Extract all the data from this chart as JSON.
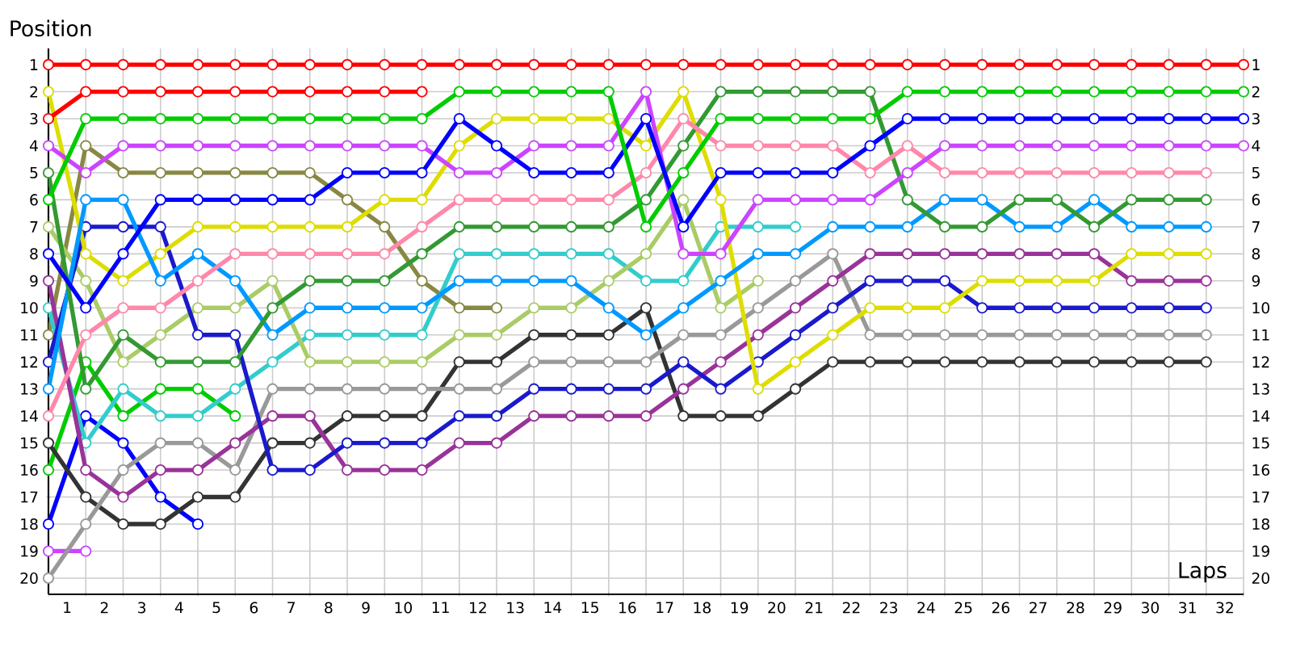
{
  "chart_data": {
    "type": "line",
    "xlabel": "Laps",
    "ylabel": "Position",
    "marker": "circle",
    "grid": true,
    "x": [
      0.5,
      1.5,
      2.5,
      3.5,
      4.5,
      5.5,
      6.5,
      7.5,
      8.5,
      9.5,
      10.5,
      11.5,
      12.5,
      13.5,
      14.5,
      15.5,
      16.5,
      17.5,
      18.5,
      19.5,
      20.5,
      21.5,
      22.5,
      23.5,
      24.5,
      25.5,
      26.5,
      27.5,
      28.5,
      29.5,
      30.5,
      31.5,
      32.5
    ],
    "xlim": [
      0.5,
      32.5
    ],
    "xticks": [
      {
        "value": 0.5,
        "label": null
      },
      {
        "value": 1.5,
        "label": null
      },
      {
        "value": 2.5,
        "label": null
      },
      {
        "value": 3.5,
        "label": null
      },
      {
        "value": 4.5,
        "label": null
      },
      {
        "value": 5.5,
        "label": null
      },
      {
        "value": 6.5,
        "label": null
      },
      {
        "value": 7.5,
        "label": null
      },
      {
        "value": 8.5,
        "label": null
      },
      {
        "value": 9.5,
        "label": null
      },
      {
        "value": 10.5,
        "label": null
      },
      {
        "value": 11.5,
        "label": null
      },
      {
        "value": 12.5,
        "label": null
      },
      {
        "value": 13.5,
        "label": null
      },
      {
        "value": 14.5,
        "label": null
      },
      {
        "value": 15.5,
        "label": null
      },
      {
        "value": 16.5,
        "label": null
      },
      {
        "value": 17.5,
        "label": null
      },
      {
        "value": 18.5,
        "label": null
      },
      {
        "value": 19.5,
        "label": null
      },
      {
        "value": 20.5,
        "label": null
      },
      {
        "value": 21.5,
        "label": null
      },
      {
        "value": 22.5,
        "label": null
      },
      {
        "value": 23.5,
        "label": null
      },
      {
        "value": 24.5,
        "label": null
      },
      {
        "value": 25.5,
        "label": null
      },
      {
        "value": 26.5,
        "label": null
      },
      {
        "value": 27.5,
        "label": null
      },
      {
        "value": 28.5,
        "label": null
      },
      {
        "value": 29.5,
        "label": null
      },
      {
        "value": 30.5,
        "label": null
      },
      {
        "value": 31.5,
        "label": null
      },
      {
        "value": 32.5,
        "label": null
      },
      1,
      2,
      3,
      4,
      5,
      6,
      7,
      8,
      9,
      10,
      11,
      12,
      13,
      14,
      15,
      16,
      17,
      18,
      19,
      20,
      21,
      22,
      23,
      24,
      25,
      26,
      27,
      28,
      29,
      30,
      31,
      32
    ],
    "ylim": [
      20.6,
      0.4
    ],
    "yticks": [
      1,
      2,
      3,
      4,
      5,
      6,
      7,
      8,
      9,
      10,
      11,
      12,
      13,
      14,
      15,
      16,
      17,
      18,
      19,
      20
    ],
    "y2lim": [
      20.6,
      0.4
    ],
    "y2ticks": [
      1,
      2,
      3,
      4,
      5,
      6,
      7,
      8,
      9,
      10,
      11,
      12,
      13,
      14,
      15,
      16,
      17,
      18,
      19,
      20
    ],
    "series": [
      {
        "color": "#cc44ff",
        "values": [
          19,
          19,
          null,
          null,
          null,
          null,
          null,
          null,
          null,
          null,
          null,
          null,
          null,
          null,
          null,
          null,
          null,
          null,
          null,
          null,
          null,
          null,
          null,
          null,
          null,
          null,
          null,
          null,
          null,
          null,
          null,
          null,
          null
        ]
      },
      {
        "color": "#00cc00",
        "values": [
          16,
          12,
          14,
          13,
          13,
          14,
          null,
          null,
          null,
          null,
          null,
          null,
          null,
          null,
          null,
          null,
          null,
          null,
          null,
          null,
          null,
          null,
          null,
          null,
          null,
          null,
          null,
          null,
          null,
          null,
          null,
          null,
          null
        ]
      },
      {
        "color": "#0000ff",
        "values": [
          18,
          14,
          15,
          17,
          18,
          null,
          null,
          null,
          null,
          null,
          null,
          null,
          null,
          null,
          null,
          null,
          null,
          null,
          null,
          null,
          null,
          null,
          null,
          null,
          null,
          null,
          null,
          null,
          null,
          null,
          null,
          null,
          null
        ]
      },
      {
        "color": "#888844",
        "values": [
          11,
          4,
          5,
          5,
          5,
          5,
          5,
          5,
          6,
          7,
          9,
          10,
          10,
          null,
          null,
          null,
          null,
          null,
          null,
          null,
          null,
          null,
          null,
          null,
          null,
          null,
          null,
          null,
          null,
          null,
          null,
          null,
          null
        ]
      },
      {
        "color": "#33cccc",
        "values": [
          10,
          15,
          13,
          14,
          14,
          13,
          12,
          11,
          11,
          11,
          11,
          8,
          8,
          8,
          8,
          8,
          9,
          9,
          7,
          7,
          7,
          null,
          null,
          null,
          null,
          null,
          null,
          null,
          null,
          null,
          null,
          null,
          null
        ]
      },
      {
        "color": "#aacc66",
        "values": [
          7,
          9,
          12,
          11,
          10,
          10,
          9,
          12,
          12,
          12,
          12,
          11,
          11,
          10,
          10,
          9,
          8,
          6,
          10,
          9,
          null,
          null,
          null,
          null,
          null,
          null,
          null,
          null,
          null,
          null,
          null,
          null,
          null
        ]
      },
      {
        "color": "#333333",
        "values": [
          15,
          17,
          18,
          18,
          17,
          17,
          15,
          15,
          14,
          14,
          14,
          12,
          12,
          11,
          11,
          11,
          10,
          14,
          14,
          14,
          13,
          12,
          12,
          12,
          12,
          12,
          12,
          12,
          12,
          12,
          12,
          12,
          null
        ]
      },
      {
        "color": "#999999",
        "values": [
          20,
          18,
          16,
          15,
          15,
          16,
          13,
          13,
          13,
          13,
          13,
          13,
          13,
          12,
          12,
          12,
          12,
          11,
          11,
          10,
          9,
          8,
          11,
          11,
          11,
          11,
          11,
          11,
          11,
          11,
          11,
          11,
          null
        ]
      },
      {
        "color": "#993399",
        "values": [
          9,
          16,
          17,
          16,
          16,
          15,
          14,
          14,
          16,
          16,
          16,
          15,
          15,
          14,
          14,
          14,
          14,
          13,
          12,
          11,
          10,
          9,
          8,
          8,
          8,
          8,
          8,
          8,
          8,
          9,
          9,
          9,
          null
        ]
      },
      {
        "color": "#1a1acc",
        "values": [
          12,
          7,
          7,
          7,
          11,
          11,
          16,
          16,
          15,
          15,
          15,
          14,
          14,
          13,
          13,
          13,
          13,
          12,
          13,
          12,
          11,
          10,
          9,
          9,
          9,
          10,
          10,
          10,
          10,
          10,
          10,
          10,
          null
        ]
      },
      {
        "color": "#dddd00",
        "values": [
          2,
          8,
          9,
          8,
          7,
          7,
          7,
          7,
          7,
          6,
          6,
          4,
          3,
          3,
          3,
          3,
          4,
          2,
          6,
          13,
          12,
          11,
          10,
          10,
          10,
          9,
          9,
          9,
          9,
          8,
          8,
          8,
          null
        ]
      },
      {
        "color": "#0099ff",
        "values": [
          13,
          6,
          6,
          9,
          8,
          9,
          11,
          10,
          10,
          10,
          10,
          9,
          9,
          9,
          9,
          10,
          11,
          10,
          9,
          8,
          8,
          7,
          7,
          7,
          6,
          6,
          7,
          7,
          6,
          7,
          7,
          7,
          null
        ]
      },
      {
        "color": "#339933",
        "values": [
          5,
          13,
          11,
          12,
          12,
          12,
          10,
          9,
          9,
          9,
          8,
          7,
          7,
          7,
          7,
          7,
          6,
          4,
          2,
          2,
          2,
          2,
          2,
          6,
          7,
          7,
          6,
          6,
          7,
          6,
          6,
          6,
          null
        ]
      },
      {
        "color": "#ff88aa",
        "values": [
          14,
          11,
          10,
          10,
          9,
          8,
          8,
          8,
          8,
          8,
          7,
          6,
          6,
          6,
          6,
          6,
          5,
          3,
          4,
          4,
          4,
          4,
          5,
          4,
          5,
          5,
          5,
          5,
          5,
          5,
          5,
          5,
          null
        ]
      },
      {
        "color": "#cc44ff",
        "values": [
          4,
          5,
          4,
          4,
          4,
          4,
          4,
          4,
          4,
          4,
          4,
          5,
          5,
          4,
          4,
          4,
          2,
          8,
          8,
          6,
          6,
          6,
          6,
          5,
          4,
          4,
          4,
          4,
          4,
          4,
          4,
          4,
          4
        ]
      },
      {
        "color": "#0000ff",
        "values": [
          8,
          10,
          8,
          6,
          6,
          6,
          6,
          6,
          5,
          5,
          5,
          3,
          4,
          5,
          5,
          5,
          3,
          7,
          5,
          5,
          5,
          5,
          4,
          3,
          3,
          3,
          3,
          3,
          3,
          3,
          3,
          3,
          3
        ]
      },
      {
        "color": "#00cc00",
        "values": [
          6,
          3,
          3,
          3,
          3,
          3,
          3,
          3,
          3,
          3,
          3,
          2,
          2,
          2,
          2,
          2,
          7,
          5,
          3,
          3,
          3,
          3,
          3,
          2,
          2,
          2,
          2,
          2,
          2,
          2,
          2,
          2,
          2
        ]
      },
      {
        "color": "#ff0000",
        "values": [
          3,
          2,
          2,
          2,
          2,
          2,
          2,
          2,
          2,
          2,
          2,
          null,
          null,
          null,
          null,
          null,
          null,
          null,
          null,
          null,
          null,
          null,
          null,
          null,
          null,
          null,
          null,
          null,
          null,
          null,
          null,
          null,
          null
        ]
      },
      {
        "color": "#ff0000",
        "values": [
          1,
          1,
          1,
          1,
          1,
          1,
          1,
          1,
          1,
          1,
          1,
          1,
          1,
          1,
          1,
          1,
          1,
          1,
          1,
          1,
          1,
          1,
          1,
          1,
          1,
          1,
          1,
          1,
          1,
          1,
          1,
          1,
          1
        ]
      }
    ]
  }
}
